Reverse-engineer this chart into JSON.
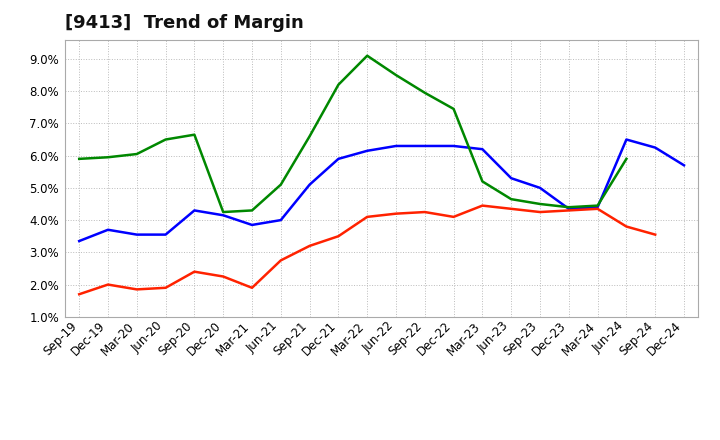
{
  "title": "[9413]  Trend of Margin",
  "x_labels": [
    "Sep-19",
    "Dec-19",
    "Mar-20",
    "Jun-20",
    "Sep-20",
    "Dec-20",
    "Mar-21",
    "Jun-21",
    "Sep-21",
    "Dec-21",
    "Mar-22",
    "Jun-22",
    "Sep-22",
    "Dec-22",
    "Mar-23",
    "Jun-23",
    "Sep-23",
    "Dec-23",
    "Mar-24",
    "Jun-24",
    "Sep-24",
    "Dec-24"
  ],
  "ordinary_income": [
    3.35,
    3.7,
    3.55,
    3.55,
    4.3,
    4.15,
    3.85,
    4.0,
    5.1,
    5.9,
    6.15,
    6.3,
    6.3,
    6.3,
    6.2,
    5.3,
    5.0,
    4.35,
    4.4,
    6.5,
    6.25,
    5.7
  ],
  "net_income": [
    1.7,
    2.0,
    1.85,
    1.9,
    2.4,
    2.25,
    1.9,
    2.75,
    3.2,
    3.5,
    4.1,
    4.2,
    4.25,
    4.1,
    4.45,
    4.35,
    4.25,
    4.3,
    4.35,
    3.8,
    3.55,
    null
  ],
  "operating_cashflow": [
    5.9,
    5.95,
    6.05,
    6.5,
    6.65,
    4.25,
    4.3,
    5.1,
    6.6,
    8.2,
    9.1,
    8.5,
    7.95,
    7.45,
    5.2,
    4.65,
    4.5,
    4.4,
    4.45,
    5.9,
    null,
    null
  ],
  "yticks": [
    1.0,
    2.0,
    3.0,
    4.0,
    5.0,
    6.0,
    7.0,
    8.0,
    9.0
  ],
  "ylim_min": 1.0,
  "ylim_max": 9.6,
  "line_colors": {
    "ordinary_income": "#0000ff",
    "net_income": "#ff2200",
    "operating_cashflow": "#008800"
  },
  "background_color": "#ffffff",
  "plot_bg_color": "#ffffff",
  "grid_color": "#bbbbbb",
  "title_color": "#111111",
  "title_fontsize": 13,
  "axis_fontsize": 8.5
}
